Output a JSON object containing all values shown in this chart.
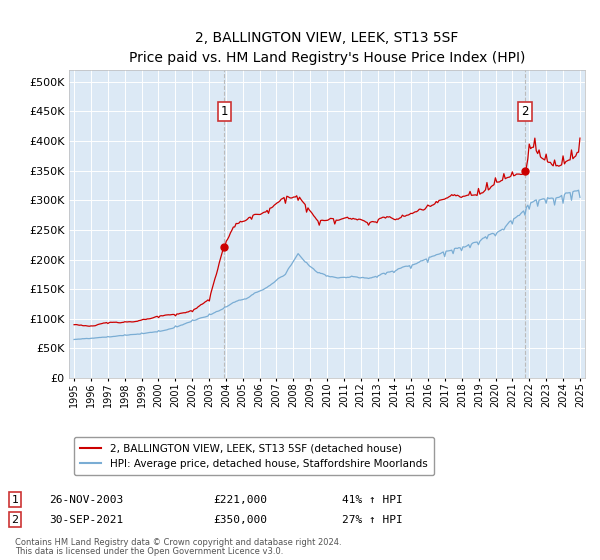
{
  "title": "2, BALLINGTON VIEW, LEEK, ST13 5SF",
  "subtitle": "Price paid vs. HM Land Registry's House Price Index (HPI)",
  "plot_bg_color": "#dce9f5",
  "ylim": [
    0,
    520000
  ],
  "yticks": [
    0,
    50000,
    100000,
    150000,
    200000,
    250000,
    300000,
    350000,
    400000,
    450000,
    500000
  ],
  "xlim_start": 1994.7,
  "xlim_end": 2025.3,
  "red_line_color": "#cc0000",
  "blue_line_color": "#7aadd4",
  "annotation_box_color": "#cc3333",
  "dashed_line_color": "#bbbbbb",
  "sale1_x": 2003.92,
  "sale1_y": 221000,
  "sale1_label": "1",
  "sale2_x": 2021.75,
  "sale2_y": 350000,
  "sale2_label": "2",
  "legend_label_red": "2, BALLINGTON VIEW, LEEK, ST13 5SF (detached house)",
  "legend_label_blue": "HPI: Average price, detached house, Staffordshire Moorlands",
  "sale1_date": "26-NOV-2003",
  "sale1_price": "£221,000",
  "sale1_hpi": "41% ↑ HPI",
  "sale2_date": "30-SEP-2021",
  "sale2_price": "£350,000",
  "sale2_hpi": "27% ↑ HPI",
  "footer_line1": "Contains HM Land Registry data © Crown copyright and database right 2024.",
  "footer_line2": "This data is licensed under the Open Government Licence v3.0."
}
